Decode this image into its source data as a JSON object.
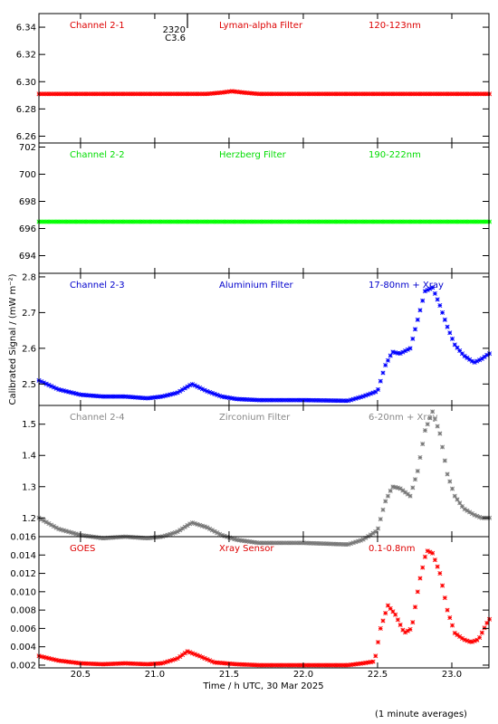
{
  "chart_data": [
    {
      "type": "scatter",
      "title": "",
      "panel_labels": [
        "Channel 2-1",
        "Lyman-alpha Filter",
        "120-123nm"
      ],
      "label_color": "#dd0000",
      "marker_color": "#ff0000",
      "ylim": [
        6.255,
        6.35
      ],
      "yticks": [
        "6.26",
        "6.28",
        "6.30",
        "6.32",
        "6.34"
      ],
      "ytick_values": [
        6.26,
        6.28,
        6.3,
        6.32,
        6.34
      ],
      "annotation": {
        "x": 21.22,
        "lines": [
          "2320",
          "C3.6"
        ]
      },
      "x": [
        20.22,
        21.0,
        21.35,
        21.45,
        21.52,
        21.6,
        21.7,
        22.0,
        23.25
      ],
      "y": [
        6.291,
        6.291,
        6.291,
        6.292,
        6.293,
        6.292,
        6.291,
        6.291,
        6.291
      ]
    },
    {
      "type": "scatter",
      "title": "",
      "panel_labels": [
        "Channel 2-2",
        "Herzberg Filter",
        "190-222nm"
      ],
      "label_color": "#00dd00",
      "marker_color": "#00ff00",
      "ylim": [
        692.7,
        702.3
      ],
      "yticks": [
        "694",
        "696",
        "698",
        "700",
        "702"
      ],
      "ytick_values": [
        694,
        696,
        698,
        700,
        702
      ],
      "x": [
        20.22,
        23.25
      ],
      "y": [
        696.5,
        696.5
      ]
    },
    {
      "type": "scatter",
      "title": "",
      "panel_labels": [
        "Channel 2-3",
        "Aluminium Filter",
        "17-80nm + Xray"
      ],
      "label_color": "#0000cc",
      "marker_color": "#0000ff",
      "ylim": [
        2.44,
        2.81
      ],
      "yticks": [
        "2.5",
        "2.6",
        "2.7",
        "2.8"
      ],
      "ytick_values": [
        2.5,
        2.6,
        2.7,
        2.8
      ],
      "x": [
        20.22,
        20.35,
        20.5,
        20.65,
        20.8,
        20.95,
        21.05,
        21.15,
        21.25,
        21.35,
        21.45,
        21.55,
        21.7,
        22.0,
        22.3,
        22.4,
        22.5,
        22.55,
        22.6,
        22.65,
        22.72,
        22.77,
        22.82,
        22.87,
        22.92,
        22.97,
        23.02,
        23.08,
        23.15,
        23.2,
        23.25
      ],
      "y": [
        2.51,
        2.485,
        2.47,
        2.465,
        2.465,
        2.46,
        2.465,
        2.475,
        2.5,
        2.48,
        2.465,
        2.458,
        2.455,
        2.455,
        2.453,
        2.465,
        2.48,
        2.55,
        2.59,
        2.585,
        2.6,
        2.68,
        2.76,
        2.77,
        2.72,
        2.66,
        2.61,
        2.58,
        2.56,
        2.57,
        2.585
      ]
    },
    {
      "type": "scatter",
      "title": "",
      "panel_labels": [
        "Channel 2-4",
        "Zirconium Filter",
        "6-20nm + Xray"
      ],
      "label_color": "#888888",
      "marker_color": "#777777",
      "ylim": [
        1.14,
        1.56
      ],
      "yticks": [
        "1.2",
        "1.3",
        "1.4",
        "1.5"
      ],
      "ytick_values": [
        1.2,
        1.3,
        1.4,
        1.5
      ],
      "x": [
        20.22,
        20.35,
        20.5,
        20.65,
        20.8,
        20.95,
        21.05,
        21.15,
        21.25,
        21.35,
        21.45,
        21.55,
        21.7,
        22.0,
        22.3,
        22.4,
        22.5,
        22.55,
        22.6,
        22.65,
        22.72,
        22.77,
        22.82,
        22.87,
        22.92,
        22.97,
        23.02,
        23.08,
        23.15,
        23.2,
        23.25
      ],
      "y": [
        1.2,
        1.165,
        1.145,
        1.135,
        1.14,
        1.135,
        1.14,
        1.155,
        1.185,
        1.17,
        1.145,
        1.13,
        1.12,
        1.12,
        1.115,
        1.13,
        1.16,
        1.25,
        1.3,
        1.295,
        1.27,
        1.35,
        1.48,
        1.54,
        1.47,
        1.34,
        1.27,
        1.23,
        1.21,
        1.2,
        1.2
      ]
    },
    {
      "type": "scatter",
      "title": "",
      "panel_labels": [
        "GOES",
        "Xray Sensor",
        "0.1-0.8nm"
      ],
      "label_color": "#dd0000",
      "marker_color": "#ff0000",
      "ylim": [
        0.0017,
        0.016
      ],
      "yticks": [
        "0.002",
        "0.004",
        "0.006",
        "0.008",
        "0.010",
        "0.012",
        "0.014",
        "0.016"
      ],
      "ytick_values": [
        0.002,
        0.004,
        0.006,
        0.008,
        0.01,
        0.012,
        0.014,
        0.016
      ],
      "x": [
        20.22,
        20.35,
        20.5,
        20.65,
        20.8,
        20.95,
        21.05,
        21.15,
        21.22,
        21.3,
        21.4,
        21.55,
        21.7,
        22.0,
        22.3,
        22.4,
        22.48,
        22.52,
        22.57,
        22.62,
        22.68,
        22.73,
        22.78,
        22.83,
        22.87,
        22.92,
        22.97,
        23.02,
        23.08,
        23.13,
        23.18,
        23.25
      ],
      "y": [
        0.003,
        0.0025,
        0.0022,
        0.0021,
        0.0022,
        0.0021,
        0.0022,
        0.0027,
        0.0035,
        0.003,
        0.0023,
        0.0021,
        0.002,
        0.002,
        0.002,
        0.0022,
        0.0024,
        0.006,
        0.0085,
        0.0075,
        0.0055,
        0.006,
        0.011,
        0.0145,
        0.0142,
        0.012,
        0.008,
        0.0055,
        0.0048,
        0.0045,
        0.0048,
        0.007
      ]
    }
  ],
  "ylabel": "Calibrated Signal / (mW m⁻²)",
  "xlabel": "Time / h UTC, 30 Mar 2025",
  "xlim": [
    20.22,
    23.25
  ],
  "xticks": [
    "20.5",
    "21.0",
    "21.5",
    "22.0",
    "22.5",
    "23.0"
  ],
  "xtick_values": [
    20.5,
    21.0,
    21.5,
    22.0,
    22.5,
    23.0
  ],
  "footnote": "(1 minute averages)"
}
